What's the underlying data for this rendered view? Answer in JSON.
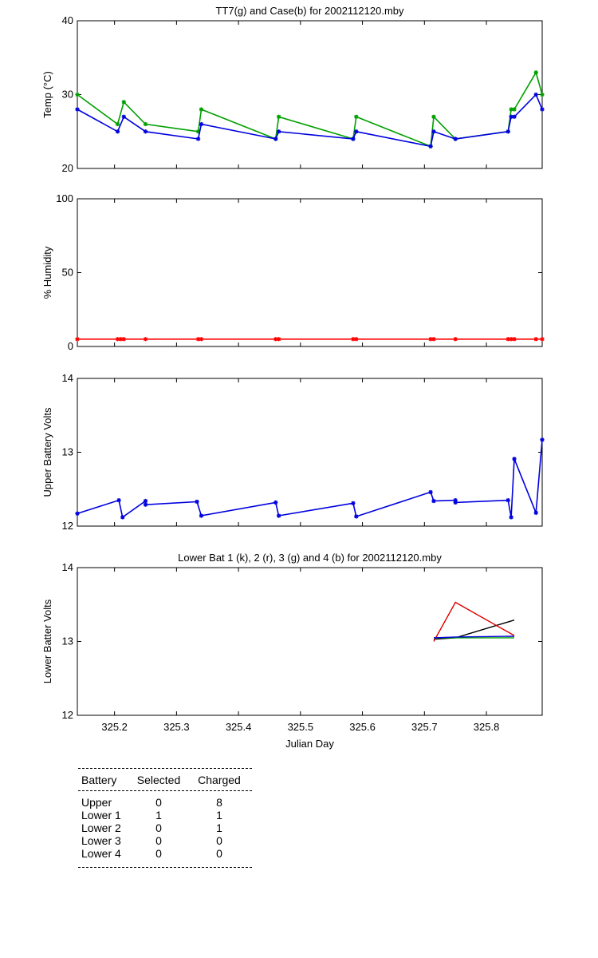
{
  "chart_data": [
    {
      "type": "line",
      "title": "TT7(g) and Case(b) for 2002112120.mby",
      "xlabel": "",
      "ylabel": "Temp (°C)",
      "xlim": [
        325.14,
        325.89
      ],
      "ylim": [
        20,
        40
      ],
      "yticks": [
        20,
        30,
        40
      ],
      "grid": false,
      "series": [
        {
          "color": "#00a000",
          "x": [
            325.14,
            325.205,
            325.215,
            325.25,
            325.335,
            325.34,
            325.46,
            325.465,
            325.585,
            325.59,
            325.71,
            325.715,
            325.75,
            325.835,
            325.84,
            325.845,
            325.88,
            325.89
          ],
          "y": [
            30,
            26,
            29,
            26,
            25,
            28,
            24,
            27,
            24,
            27,
            23,
            27,
            24,
            25,
            28,
            28,
            33,
            30
          ]
        },
        {
          "color": "#0000e0",
          "x": [
            325.14,
            325.205,
            325.215,
            325.25,
            325.335,
            325.34,
            325.46,
            325.465,
            325.585,
            325.59,
            325.71,
            325.715,
            325.75,
            325.835,
            325.84,
            325.845,
            325.88,
            325.89
          ],
          "y": [
            28,
            25,
            27,
            25,
            24,
            26,
            24,
            25,
            24,
            25,
            23,
            25,
            24,
            25,
            27,
            27,
            30,
            28
          ]
        }
      ]
    },
    {
      "type": "line",
      "title": "",
      "xlabel": "",
      "ylabel": "% Humidity",
      "xlim": [
        325.14,
        325.89
      ],
      "ylim": [
        0,
        100
      ],
      "yticks": [
        0,
        50,
        100
      ],
      "grid": false,
      "series": [
        {
          "color": "#ff0000",
          "x": [
            325.14,
            325.205,
            325.21,
            325.215,
            325.25,
            325.335,
            325.34,
            325.46,
            325.465,
            325.585,
            325.59,
            325.71,
            325.715,
            325.75,
            325.835,
            325.84,
            325.845,
            325.88,
            325.89
          ],
          "y": [
            5,
            5,
            5,
            5,
            5,
            5,
            5,
            5,
            5,
            5,
            5,
            5,
            5,
            5,
            5,
            5,
            5,
            5,
            5
          ]
        }
      ]
    },
    {
      "type": "line",
      "title": "",
      "xlabel": "",
      "ylabel": "Upper Battery Volts",
      "xlim": [
        325.14,
        325.89
      ],
      "ylim": [
        12,
        14
      ],
      "yticks": [
        12,
        13,
        14
      ],
      "grid": false,
      "series": [
        {
          "color": "#0000e0",
          "x": [
            325.14,
            325.207,
            325.213,
            325.25,
            325.25,
            325.333,
            325.34,
            325.46,
            325.465,
            325.585,
            325.59,
            325.71,
            325.715,
            325.75,
            325.75,
            325.835,
            325.84,
            325.845,
            325.88,
            325.89
          ],
          "y": [
            12.17,
            12.35,
            12.12,
            12.34,
            12.29,
            12.33,
            12.14,
            12.32,
            12.14,
            12.31,
            12.13,
            12.46,
            12.34,
            12.35,
            12.32,
            12.35,
            12.12,
            12.91,
            12.18,
            13.17
          ]
        }
      ]
    },
    {
      "type": "line",
      "title": "Lower Bat 1 (k), 2 (r), 3 (g) and 4 (b) for 2002112120.mby",
      "xlabel": "Julian Day",
      "ylabel": "Lower Batter Volts",
      "xlim": [
        325.14,
        325.89
      ],
      "ylim": [
        12,
        14
      ],
      "yticks": [
        12,
        13,
        14
      ],
      "xticks": [
        325.2,
        325.3,
        325.4,
        325.5,
        325.6,
        325.7,
        325.8
      ],
      "xtick_labels": [
        "325.2",
        "325.3",
        "325.4",
        "325.5",
        "325.6",
        "325.7",
        "325.8"
      ],
      "grid": false,
      "series": [
        {
          "color": "#000000",
          "x": [
            325.715,
            325.75,
            325.845
          ],
          "y": [
            13.03,
            13.05,
            13.29
          ]
        },
        {
          "color": "#e00000",
          "x": [
            325.715,
            325.75,
            325.845
          ],
          "y": [
            13.0,
            13.53,
            13.08
          ]
        },
        {
          "color": "#00a000",
          "x": [
            325.715,
            325.75,
            325.845
          ],
          "y": [
            13.05,
            13.05,
            13.05
          ]
        },
        {
          "color": "#0000e0",
          "x": [
            325.715,
            325.75,
            325.845
          ],
          "y": [
            13.05,
            13.06,
            13.07
          ]
        }
      ]
    }
  ],
  "battery_table": {
    "headers": [
      "Battery",
      "Selected",
      "Charged"
    ],
    "rows": [
      [
        "Upper",
        "0",
        "8"
      ],
      [
        "Lower 1",
        "1",
        "1"
      ],
      [
        "Lower 2",
        "0",
        "1"
      ],
      [
        "Lower 3",
        "0",
        "0"
      ],
      [
        "Lower 4",
        "0",
        "0"
      ]
    ]
  }
}
